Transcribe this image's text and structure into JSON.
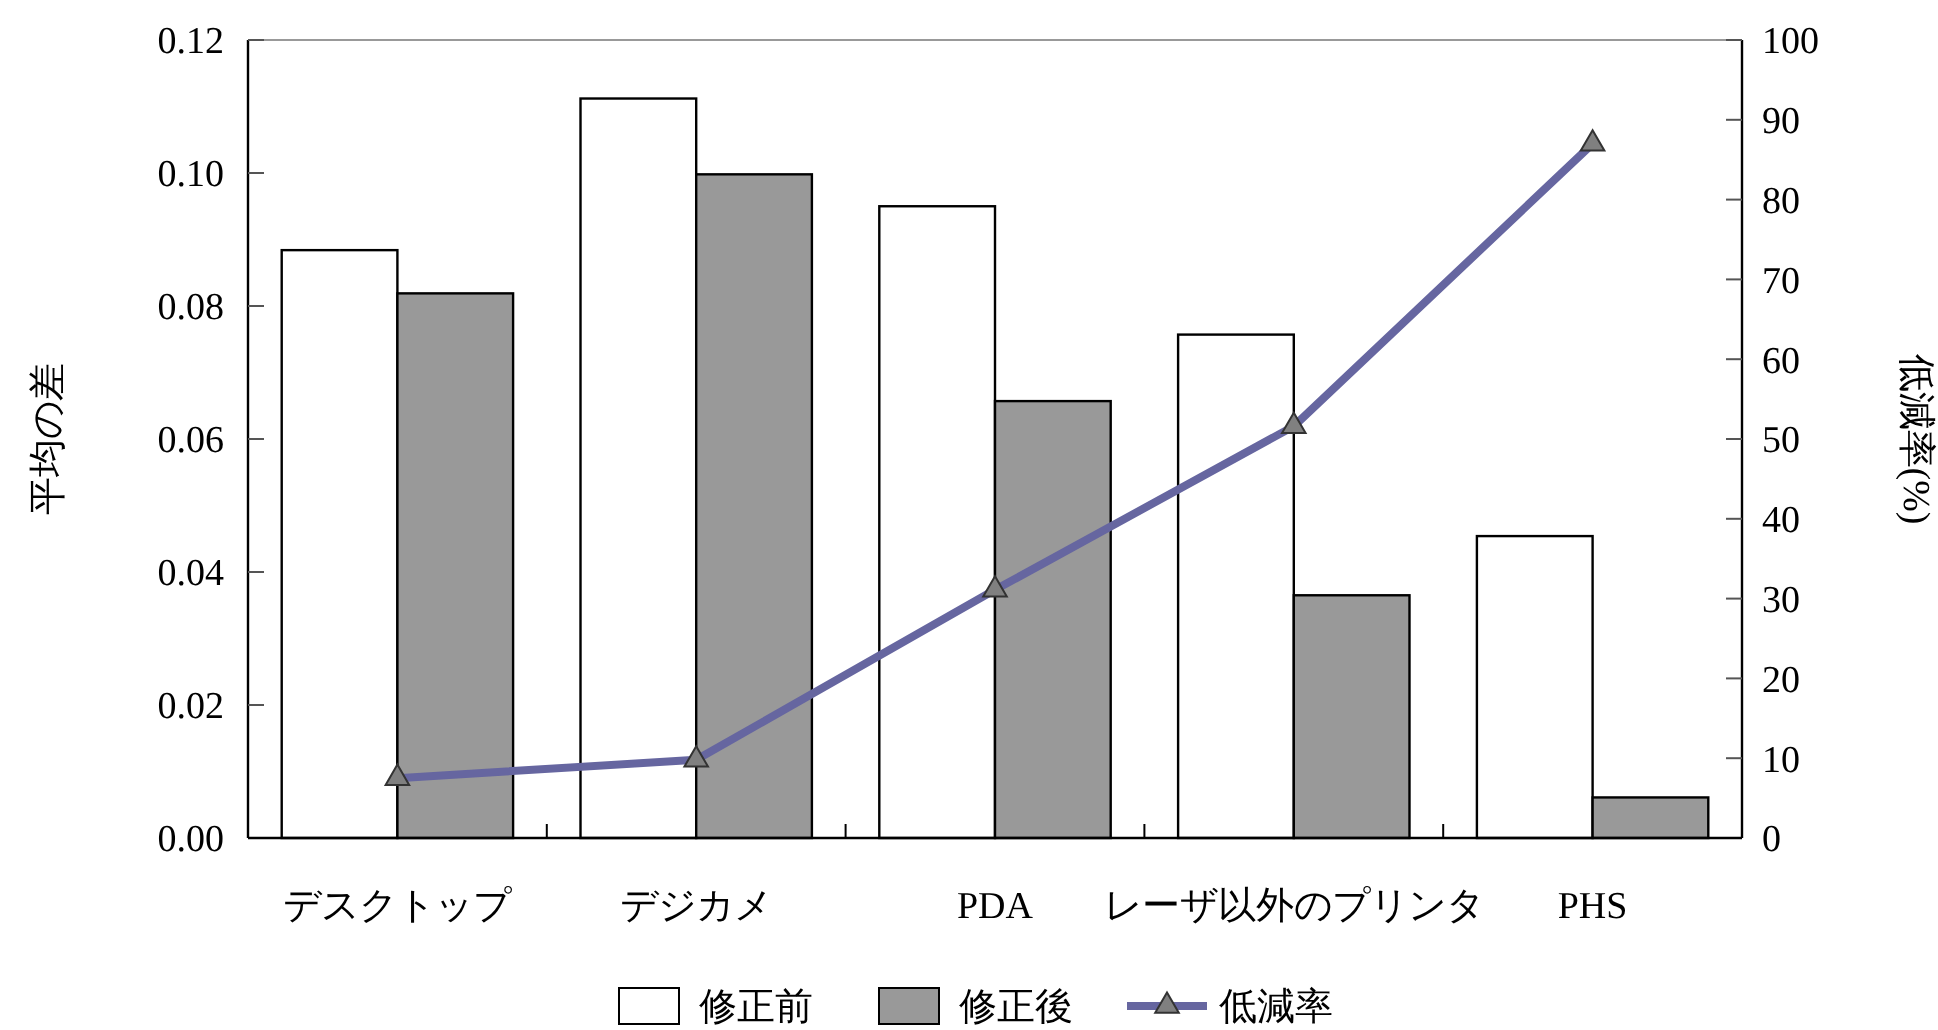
{
  "chart_data": {
    "type": "bar",
    "ylabel": "平均の差",
    "y2label": "低減率(%)",
    "categories": [
      "デスクトップ",
      "デジカメ",
      "PDA",
      "レーザ以外のプリンタ",
      "PHS"
    ],
    "series": [
      {
        "name": "修正前",
        "color": "#ffffff",
        "values": [
          0.0884,
          0.1112,
          0.095,
          0.0757,
          0.0454
        ]
      },
      {
        "name": "修正後",
        "color": "#999999",
        "values": [
          0.0819,
          0.0998,
          0.0657,
          0.0365,
          0.0061
        ]
      },
      {
        "name": "低減率",
        "type": "line",
        "axis": "y2",
        "color": "#6666a0",
        "marker": "triangle",
        "values": [
          7.5,
          9.8,
          31.1,
          51.6,
          87.0
        ]
      }
    ],
    "ylim": [
      0,
      0.12
    ],
    "yticks": [
      {
        "value": 0,
        "label": "0.00"
      },
      {
        "value": 0.02,
        "label": "0.02"
      },
      {
        "value": 0.04,
        "label": "0.04"
      },
      {
        "value": 0.06,
        "label": "0.06"
      },
      {
        "value": 0.08,
        "label": "0.08"
      },
      {
        "value": 0.1,
        "label": "0.10"
      },
      {
        "value": 0.12,
        "label": "0.12"
      }
    ],
    "y2lim": [
      0,
      100
    ],
    "y2ticks": [
      0,
      10,
      20,
      30,
      40,
      50,
      60,
      70,
      80,
      90,
      100
    ],
    "legend": "bottom",
    "grid": false
  }
}
